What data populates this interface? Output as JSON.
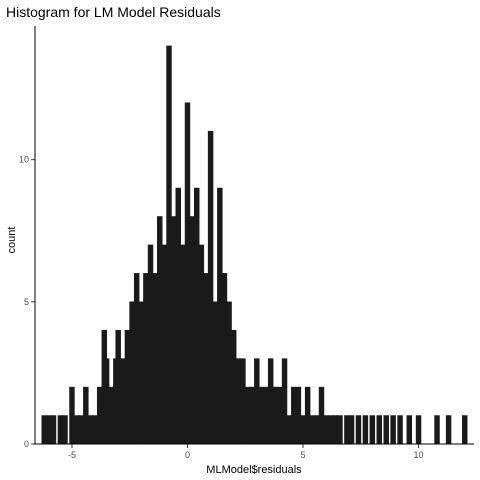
{
  "chart_data": {
    "type": "bar",
    "subtype": "histogram",
    "title": "Histogram for LM Model Residuals",
    "xlabel": "MLModel$residuals",
    "ylabel": "count",
    "xlim": [
      -6.6,
      12.4
    ],
    "ylim": [
      0,
      14.7
    ],
    "xticks": [
      -5,
      0,
      5,
      10
    ],
    "yticks": [
      0,
      5,
      10
    ],
    "grid": false,
    "bar_color": "#1a1a1a",
    "bins": [
      {
        "x": -6.2,
        "count": 1
      },
      {
        "x": -6.0,
        "count": 1
      },
      {
        "x": -5.8,
        "count": 1
      },
      {
        "x": -5.5,
        "count": 1
      },
      {
        "x": -5.3,
        "count": 1
      },
      {
        "x": -5.0,
        "count": 2
      },
      {
        "x": -4.8,
        "count": 1
      },
      {
        "x": -4.6,
        "count": 1
      },
      {
        "x": -4.4,
        "count": 2
      },
      {
        "x": -4.2,
        "count": 1
      },
      {
        "x": -4.0,
        "count": 1
      },
      {
        "x": -3.8,
        "count": 2
      },
      {
        "x": -3.6,
        "count": 4
      },
      {
        "x": -3.5,
        "count": 3
      },
      {
        "x": -3.3,
        "count": 2
      },
      {
        "x": -3.1,
        "count": 3
      },
      {
        "x": -3.0,
        "count": 4
      },
      {
        "x": -2.8,
        "count": 3
      },
      {
        "x": -2.6,
        "count": 4
      },
      {
        "x": -2.4,
        "count": 5
      },
      {
        "x": -2.2,
        "count": 6
      },
      {
        "x": -2.0,
        "count": 5
      },
      {
        "x": -1.8,
        "count": 6
      },
      {
        "x": -1.6,
        "count": 7
      },
      {
        "x": -1.4,
        "count": 6
      },
      {
        "x": -1.2,
        "count": 8
      },
      {
        "x": -1.0,
        "count": 7
      },
      {
        "x": -0.8,
        "count": 14
      },
      {
        "x": -0.6,
        "count": 8
      },
      {
        "x": -0.4,
        "count": 9
      },
      {
        "x": -0.2,
        "count": 7
      },
      {
        "x": 0.0,
        "count": 12
      },
      {
        "x": 0.2,
        "count": 8
      },
      {
        "x": 0.4,
        "count": 9
      },
      {
        "x": 0.6,
        "count": 7
      },
      {
        "x": 0.8,
        "count": 6
      },
      {
        "x": 1.0,
        "count": 11
      },
      {
        "x": 1.2,
        "count": 5
      },
      {
        "x": 1.4,
        "count": 9
      },
      {
        "x": 1.6,
        "count": 6
      },
      {
        "x": 1.8,
        "count": 5
      },
      {
        "x": 2.0,
        "count": 4
      },
      {
        "x": 2.2,
        "count": 3
      },
      {
        "x": 2.4,
        "count": 3
      },
      {
        "x": 2.6,
        "count": 2
      },
      {
        "x": 2.8,
        "count": 2
      },
      {
        "x": 3.0,
        "count": 3
      },
      {
        "x": 3.2,
        "count": 2
      },
      {
        "x": 3.4,
        "count": 2
      },
      {
        "x": 3.6,
        "count": 3
      },
      {
        "x": 3.8,
        "count": 2
      },
      {
        "x": 4.0,
        "count": 2
      },
      {
        "x": 4.2,
        "count": 3
      },
      {
        "x": 4.4,
        "count": 1
      },
      {
        "x": 4.6,
        "count": 2
      },
      {
        "x": 4.8,
        "count": 2
      },
      {
        "x": 5.0,
        "count": 1
      },
      {
        "x": 5.2,
        "count": 2
      },
      {
        "x": 5.4,
        "count": 1
      },
      {
        "x": 5.6,
        "count": 1
      },
      {
        "x": 5.8,
        "count": 2
      },
      {
        "x": 6.0,
        "count": 1
      },
      {
        "x": 6.2,
        "count": 1
      },
      {
        "x": 6.4,
        "count": 1
      },
      {
        "x": 6.6,
        "count": 1
      },
      {
        "x": 6.9,
        "count": 1
      },
      {
        "x": 7.1,
        "count": 1
      },
      {
        "x": 7.4,
        "count": 1
      },
      {
        "x": 7.7,
        "count": 1
      },
      {
        "x": 8.0,
        "count": 1
      },
      {
        "x": 8.3,
        "count": 1
      },
      {
        "x": 8.6,
        "count": 1
      },
      {
        "x": 8.9,
        "count": 1
      },
      {
        "x": 9.2,
        "count": 1
      },
      {
        "x": 9.6,
        "count": 1
      },
      {
        "x": 10.0,
        "count": 1
      },
      {
        "x": 10.8,
        "count": 1
      },
      {
        "x": 11.3,
        "count": 1
      },
      {
        "x": 12.0,
        "count": 1
      }
    ]
  }
}
